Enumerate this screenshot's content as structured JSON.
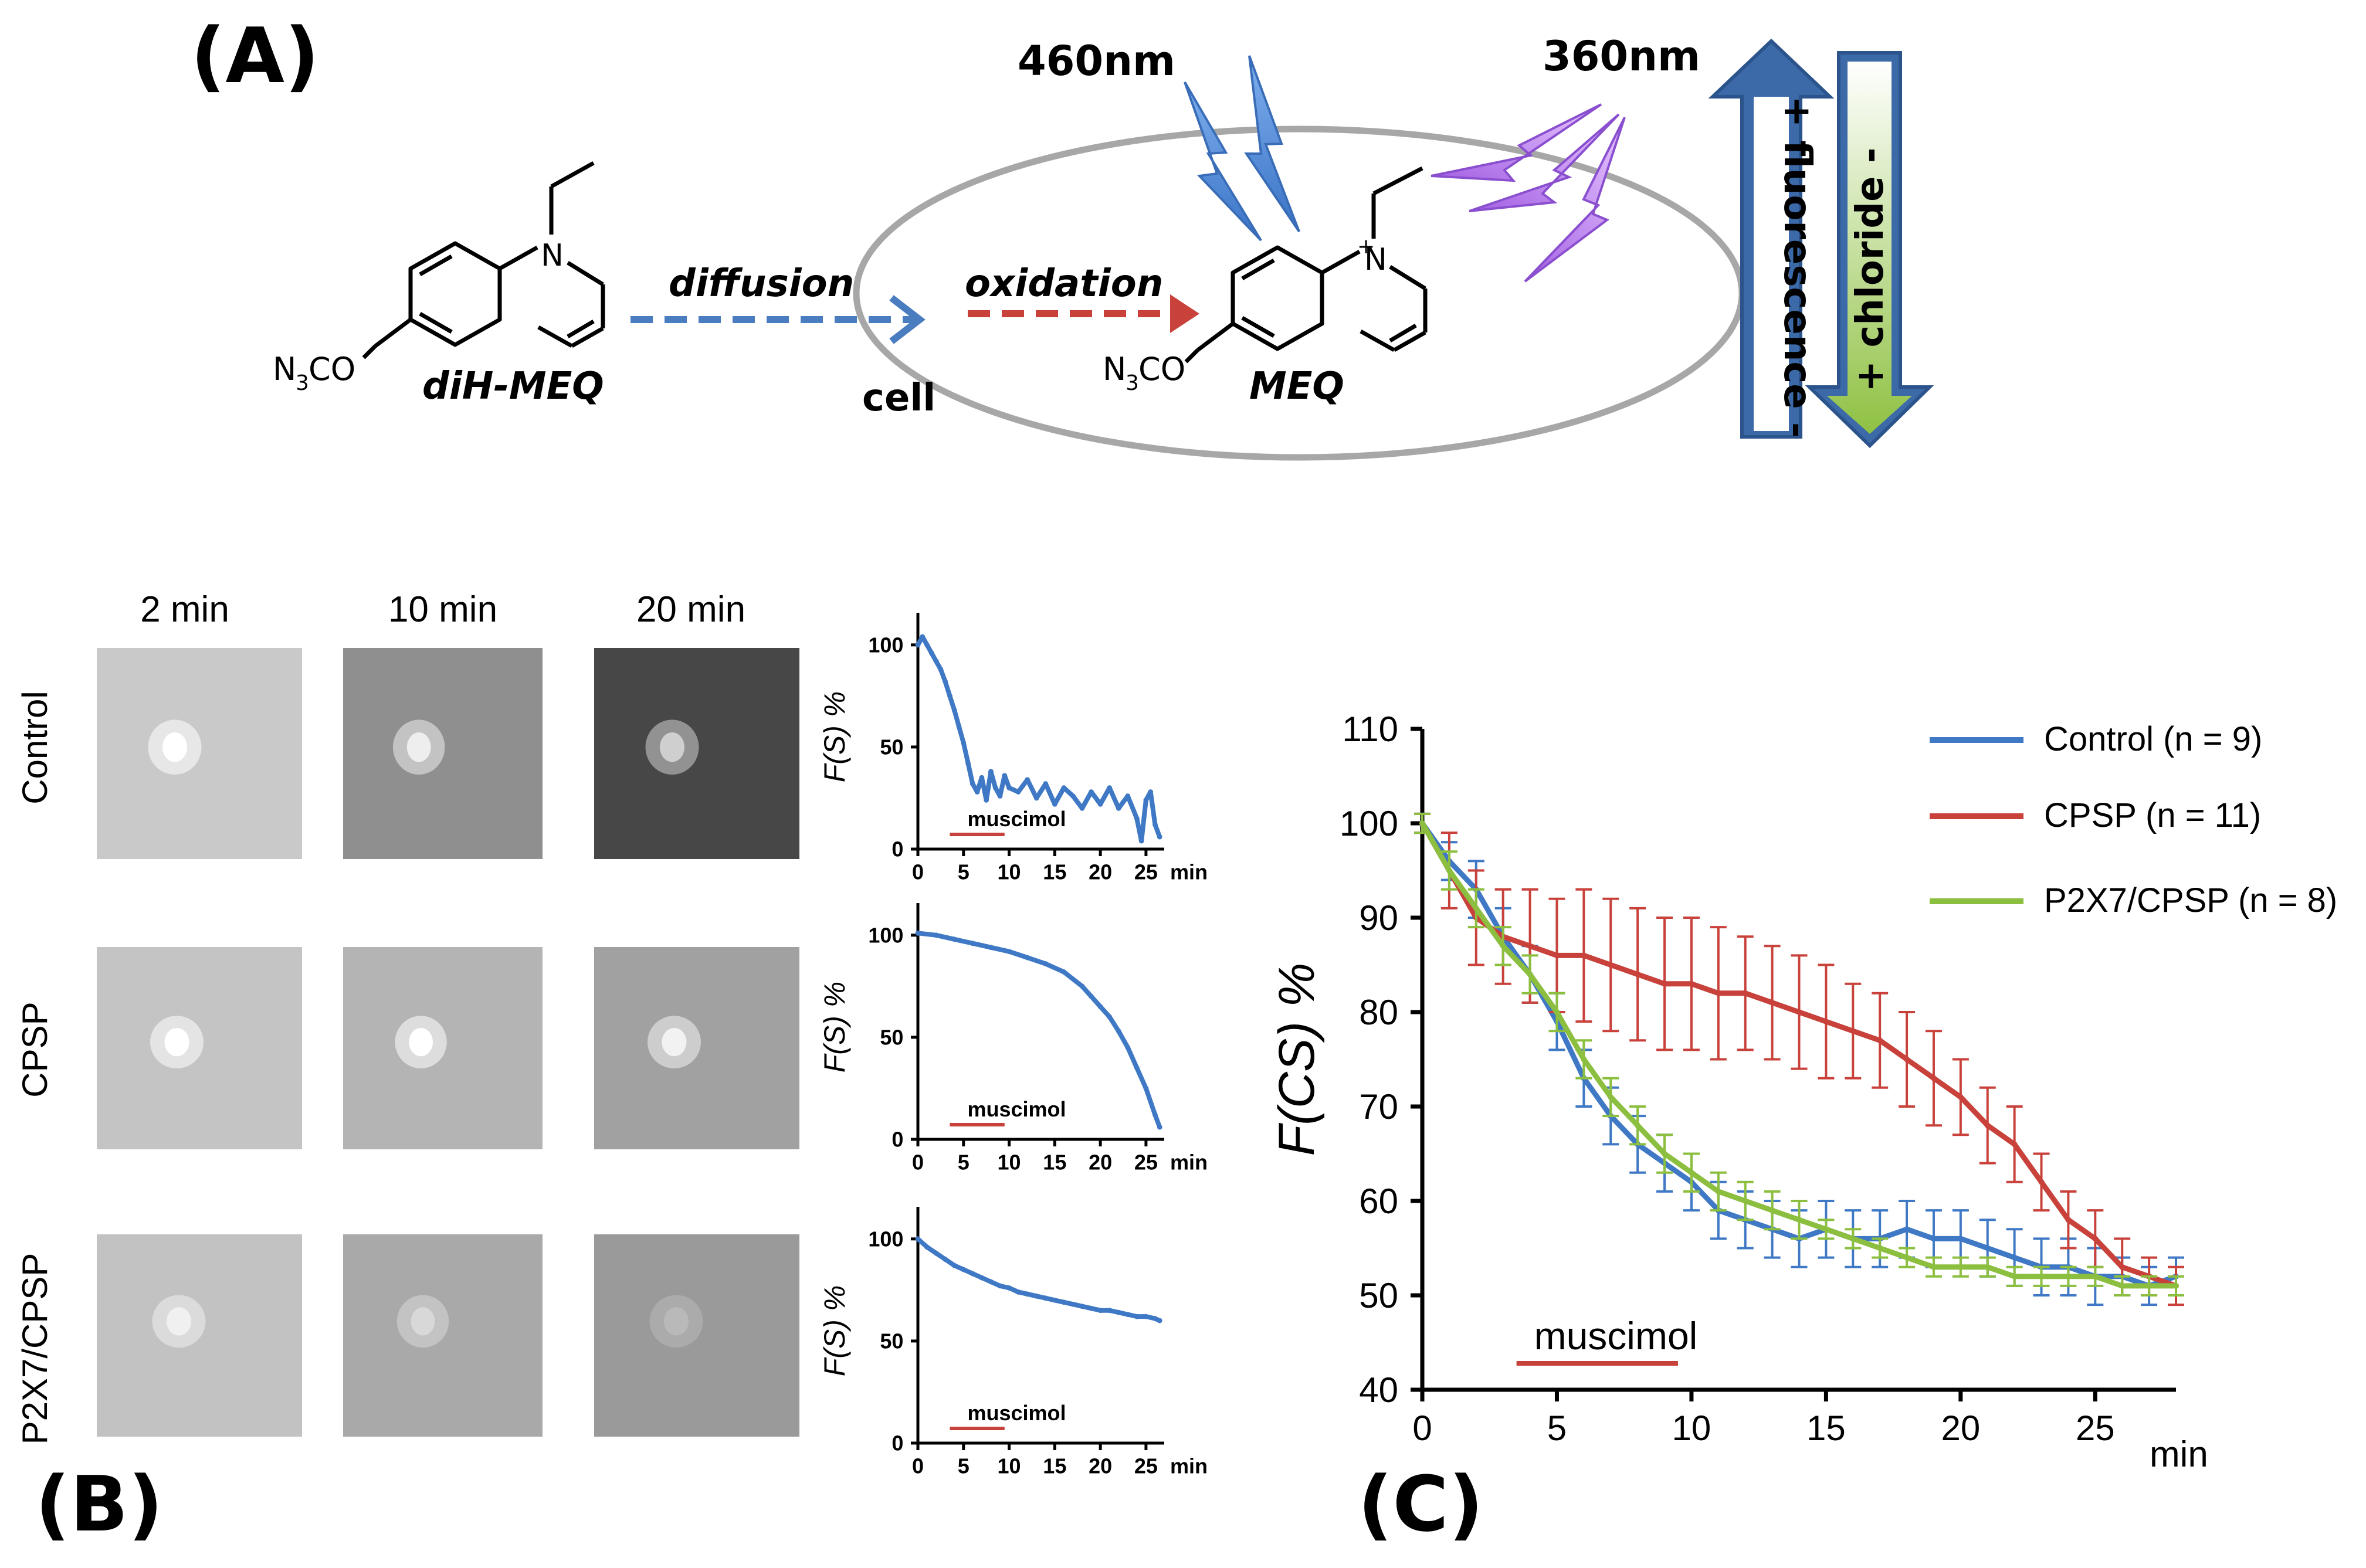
{
  "panelA": {
    "letter": "(A)",
    "wavelength_emission": "460nm",
    "wavelength_excitation": "360nm",
    "diffusion_label": "diffusion",
    "oxidation_label": "oxidation",
    "cell_label": "cell",
    "precursor_name": "diH-MEQ",
    "product_name": "MEQ",
    "substituent_1": "N",
    "substituent_2": "3",
    "substituent_3": "CO",
    "ring_n": "N",
    "ring_n_plus": "+",
    "arrow_up_text": "+ fluorescence -",
    "arrow_down_text": "+ chloride -",
    "colors": {
      "blue_arrow": "#4a7cc0",
      "red_arrow": "#c8423b",
      "cell": "#a7a7a7",
      "fluorescence_arrow": "#3c6aa8",
      "chloride_arrow": "#8fc143",
      "bolt_blue": "#5b8fd6",
      "bolt_violet": "#b57ae8"
    }
  },
  "panelB": {
    "letter": "(B)",
    "column_headers": [
      "2 min",
      "10 min",
      "20 min"
    ],
    "row_labels": [
      "Control",
      "CPSP",
      "P2X7/CPSP"
    ],
    "image_brightness": [
      {
        "bg": [
          "#c9c9c9",
          "#8f8f8f",
          "#474747"
        ],
        "spot": [
          "#ffffff",
          "#eeeeee",
          "#cfcfcf"
        ]
      },
      {
        "bg": [
          "#c4c4c4",
          "#b4b4b4",
          "#a1a1a1"
        ],
        "spot": [
          "#ffffff",
          "#ffffff",
          "#f2f2f2"
        ]
      },
      {
        "bg": [
          "#c2c2c2",
          "#a9a9a9",
          "#9a9a9a"
        ],
        "spot": [
          "#f0f0f0",
          "#d8d8d8",
          "#b9b9b9"
        ]
      }
    ],
    "mini_chart": {
      "ylabel": "F(S) %",
      "x_unit": "min",
      "x_ticks": [
        "0",
        "5",
        "10",
        "15",
        "20",
        "25"
      ],
      "y_ticks": [
        "0",
        "50",
        "100"
      ],
      "annotation": "muscimol"
    }
  },
  "panelC": {
    "letter": "(C)"
  },
  "chart_data": [
    {
      "type": "line",
      "panel": "B-Control",
      "ylabel": "F(S) %",
      "xlabel": "min",
      "xlim": [
        0,
        27
      ],
      "ylim": [
        0,
        110
      ],
      "x_ticks": [
        0,
        5,
        10,
        15,
        20,
        25
      ],
      "y_ticks": [
        0,
        50,
        100
      ],
      "annotation": {
        "text": "muscimol",
        "x_range": [
          3.5,
          9.5
        ]
      },
      "series": [
        {
          "color": "#3f78c4",
          "x": [
            0,
            0.5,
            1,
            1.5,
            2,
            2.5,
            3,
            3.5,
            4,
            4.5,
            5,
            5.5,
            6,
            6.5,
            7,
            7.5,
            8,
            8.5,
            9,
            9.5,
            10,
            11,
            12,
            13,
            14,
            15,
            16,
            17,
            18,
            19,
            20,
            21,
            22,
            23,
            24,
            24.5,
            25,
            25.5,
            26,
            26.5
          ],
          "y": [
            100,
            104,
            100,
            96,
            92,
            88,
            82,
            75,
            68,
            60,
            52,
            42,
            32,
            28,
            35,
            24,
            38,
            30,
            26,
            36,
            30,
            28,
            34,
            25,
            32,
            22,
            30,
            26,
            20,
            28,
            22,
            30,
            20,
            26,
            15,
            4,
            24,
            28,
            12,
            6
          ]
        }
      ]
    },
    {
      "type": "line",
      "panel": "B-CPSP",
      "ylabel": "F(S) %",
      "xlabel": "min",
      "xlim": [
        0,
        27
      ],
      "ylim": [
        0,
        110
      ],
      "x_ticks": [
        0,
        5,
        10,
        15,
        20,
        25
      ],
      "y_ticks": [
        0,
        50,
        100
      ],
      "annotation": {
        "text": "muscimol",
        "x_range": [
          3.5,
          9.5
        ]
      },
      "series": [
        {
          "color": "#3f78c4",
          "x": [
            0,
            2,
            4,
            6,
            8,
            10,
            12,
            14,
            16,
            18,
            19,
            20,
            21,
            22,
            23,
            24,
            25,
            26,
            26.5
          ],
          "y": [
            101,
            100,
            98,
            96,
            94,
            92,
            89,
            86,
            82,
            75,
            70,
            65,
            60,
            53,
            45,
            35,
            25,
            12,
            6
          ]
        }
      ]
    },
    {
      "type": "line",
      "panel": "B-P2X7/CPSP",
      "ylabel": "F(S) %",
      "xlabel": "min",
      "xlim": [
        0,
        27
      ],
      "ylim": [
        0,
        110
      ],
      "x_ticks": [
        0,
        5,
        10,
        15,
        20,
        25
      ],
      "y_ticks": [
        0,
        50,
        100
      ],
      "annotation": {
        "text": "muscimol",
        "x_range": [
          3.5,
          9.5
        ]
      },
      "series": [
        {
          "color": "#3f78c4",
          "x": [
            0,
            1,
            2,
            3,
            4,
            5,
            6,
            7,
            8,
            9,
            10,
            11,
            12,
            13,
            14,
            15,
            16,
            17,
            18,
            19,
            20,
            21,
            22,
            23,
            24,
            25,
            26,
            26.5
          ],
          "y": [
            100,
            96,
            93,
            90,
            87,
            85,
            83,
            81,
            79,
            77,
            76,
            74,
            73,
            72,
            71,
            70,
            69,
            68,
            67,
            66,
            65,
            65,
            64,
            63,
            62,
            62,
            61,
            60
          ]
        }
      ]
    },
    {
      "type": "line",
      "panel": "C",
      "ylabel": "F(CS) %",
      "xlabel": "min",
      "xlim": [
        0,
        28
      ],
      "ylim": [
        40,
        110
      ],
      "x_ticks": [
        0,
        5,
        10,
        15,
        20,
        25
      ],
      "y_ticks": [
        40,
        50,
        60,
        70,
        80,
        90,
        100,
        110
      ],
      "annotation": {
        "text": "muscimol",
        "x_range": [
          3.5,
          9.5
        ]
      },
      "legend_position": "top-right",
      "series": [
        {
          "name": "Control (n = 9)",
          "color": "#3f78c4",
          "x": [
            0,
            1,
            2,
            3,
            4,
            5,
            6,
            7,
            8,
            9,
            10,
            11,
            12,
            13,
            14,
            15,
            16,
            17,
            18,
            19,
            20,
            21,
            22,
            23,
            24,
            25,
            26,
            27,
            28
          ],
          "y": [
            100,
            96,
            93,
            88,
            84,
            79,
            73,
            69,
            66,
            64,
            62,
            59,
            58,
            57,
            56,
            57,
            56,
            56,
            57,
            56,
            56,
            55,
            54,
            53,
            53,
            52,
            52,
            51,
            52
          ],
          "err": [
            1,
            2,
            3,
            3,
            3,
            3,
            3,
            3,
            3,
            3,
            3,
            3,
            3,
            3,
            3,
            3,
            3,
            3,
            3,
            3,
            3,
            3,
            3,
            3,
            3,
            3,
            2,
            2,
            2
          ]
        },
        {
          "name": "CPSP (n = 11)",
          "color": "#c8423b",
          "x": [
            0,
            1,
            2,
            3,
            4,
            5,
            6,
            7,
            8,
            9,
            10,
            11,
            12,
            13,
            14,
            15,
            16,
            17,
            18,
            19,
            20,
            21,
            22,
            23,
            24,
            25,
            26,
            27,
            28
          ],
          "y": [
            100,
            95,
            90,
            88,
            87,
            86,
            86,
            85,
            84,
            83,
            83,
            82,
            82,
            81,
            80,
            79,
            78,
            77,
            75,
            73,
            71,
            68,
            66,
            62,
            58,
            56,
            53,
            52,
            51
          ],
          "err": [
            1,
            4,
            5,
            5,
            6,
            6,
            7,
            7,
            7,
            7,
            7,
            7,
            6,
            6,
            6,
            6,
            5,
            5,
            5,
            5,
            4,
            4,
            4,
            3,
            3,
            3,
            3,
            2,
            2
          ]
        },
        {
          "name": "P2X7/CPSP (n = 8)",
          "color": "#8cbf3f",
          "x": [
            0,
            1,
            2,
            3,
            4,
            5,
            6,
            7,
            8,
            9,
            10,
            11,
            12,
            13,
            14,
            15,
            16,
            17,
            18,
            19,
            20,
            21,
            22,
            23,
            24,
            25,
            26,
            27,
            28
          ],
          "y": [
            100,
            95,
            91,
            87,
            84,
            80,
            75,
            71,
            68,
            65,
            63,
            61,
            60,
            59,
            58,
            57,
            56,
            55,
            54,
            53,
            53,
            53,
            52,
            52,
            52,
            52,
            51,
            51,
            51
          ],
          "err": [
            1,
            2,
            2,
            2,
            2,
            2,
            2,
            2,
            2,
            2,
            2,
            2,
            2,
            2,
            2,
            1,
            1,
            1,
            1,
            1,
            1,
            1,
            1,
            1,
            1,
            1,
            1,
            1,
            1
          ]
        }
      ]
    }
  ]
}
